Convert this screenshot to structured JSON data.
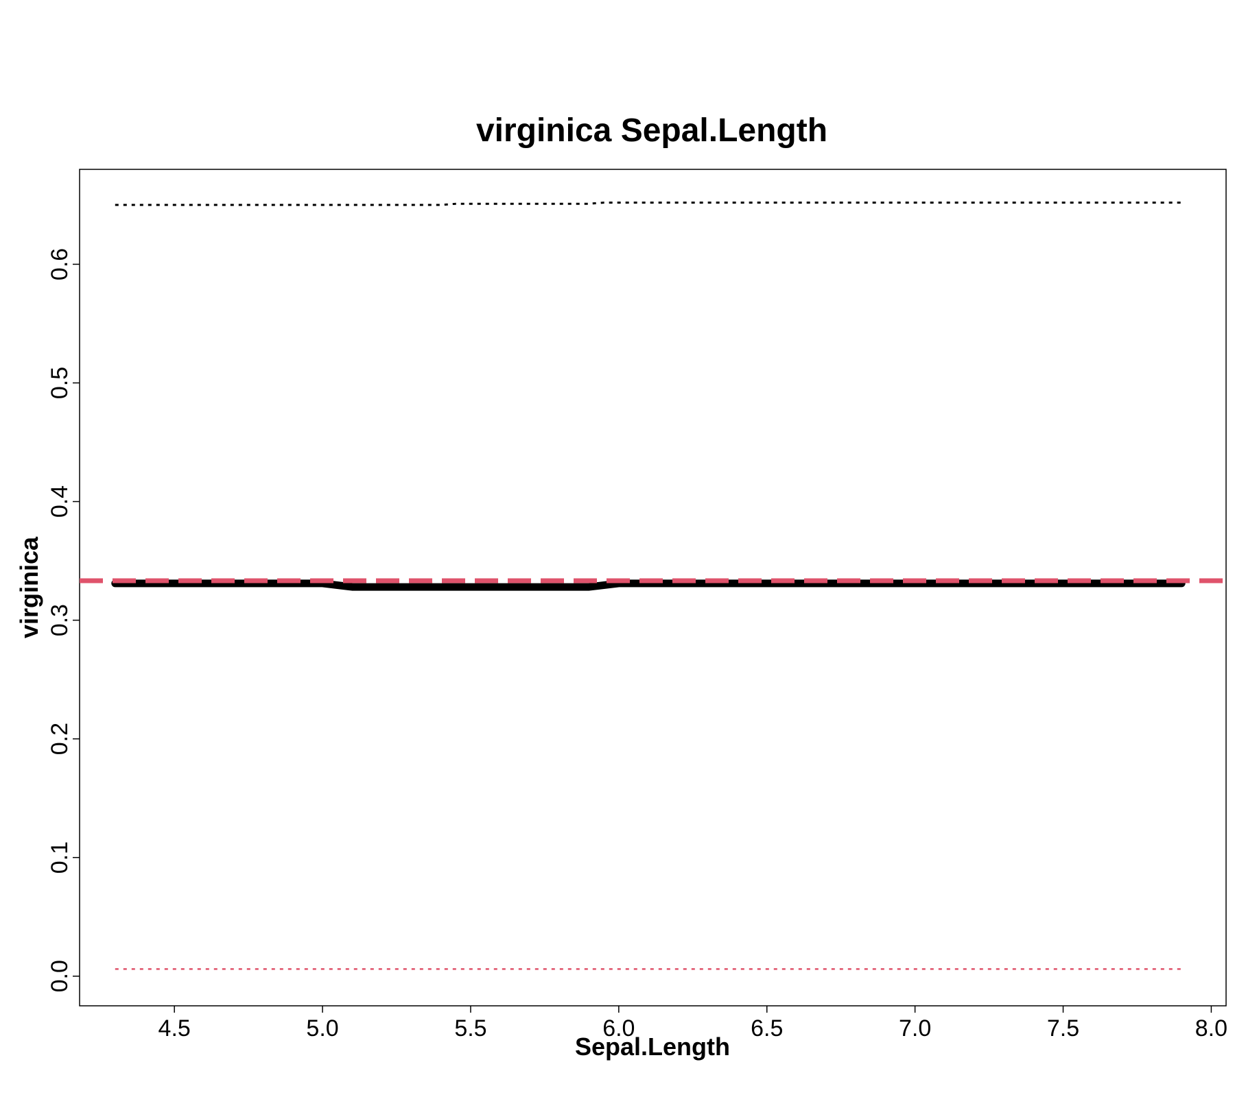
{
  "chart_data": {
    "type": "line",
    "title": "virginica  Sepal.Length",
    "xlabel": "Sepal.Length",
    "ylabel": "virginica",
    "xlim": [
      4.18,
      8.05
    ],
    "ylim": [
      -0.025,
      0.68
    ],
    "x_ticks": [
      "4.5",
      "5.0",
      "5.5",
      "6.0",
      "6.5",
      "7.0",
      "7.5",
      "8.0"
    ],
    "y_ticks": [
      "0.0",
      "0.1",
      "0.2",
      "0.3",
      "0.4",
      "0.5",
      "0.6"
    ],
    "grid": false,
    "legend": "none",
    "series": [
      {
        "style": "solid-thick",
        "color": "#000000",
        "x": [
          4.3,
          5.0,
          5.1,
          5.9,
          6.0,
          7.9
        ],
        "y": [
          0.331,
          0.331,
          0.328,
          0.328,
          0.331,
          0.331
        ]
      },
      {
        "style": "dotted-upper",
        "color": "#000000",
        "x": [
          4.3,
          5.4,
          5.45,
          5.9,
          5.95,
          7.9
        ],
        "y": [
          0.65,
          0.65,
          0.651,
          0.651,
          0.652,
          0.652
        ]
      },
      {
        "style": "dotted-lower",
        "color": "#DF536B",
        "x": [
          4.3,
          7.9
        ],
        "y": [
          0.006,
          0.006
        ]
      },
      {
        "style": "dashed-reference",
        "color": "#DF536B",
        "x": [
          4.18,
          8.05
        ],
        "y": [
          0.3333,
          0.3333
        ]
      }
    ]
  }
}
